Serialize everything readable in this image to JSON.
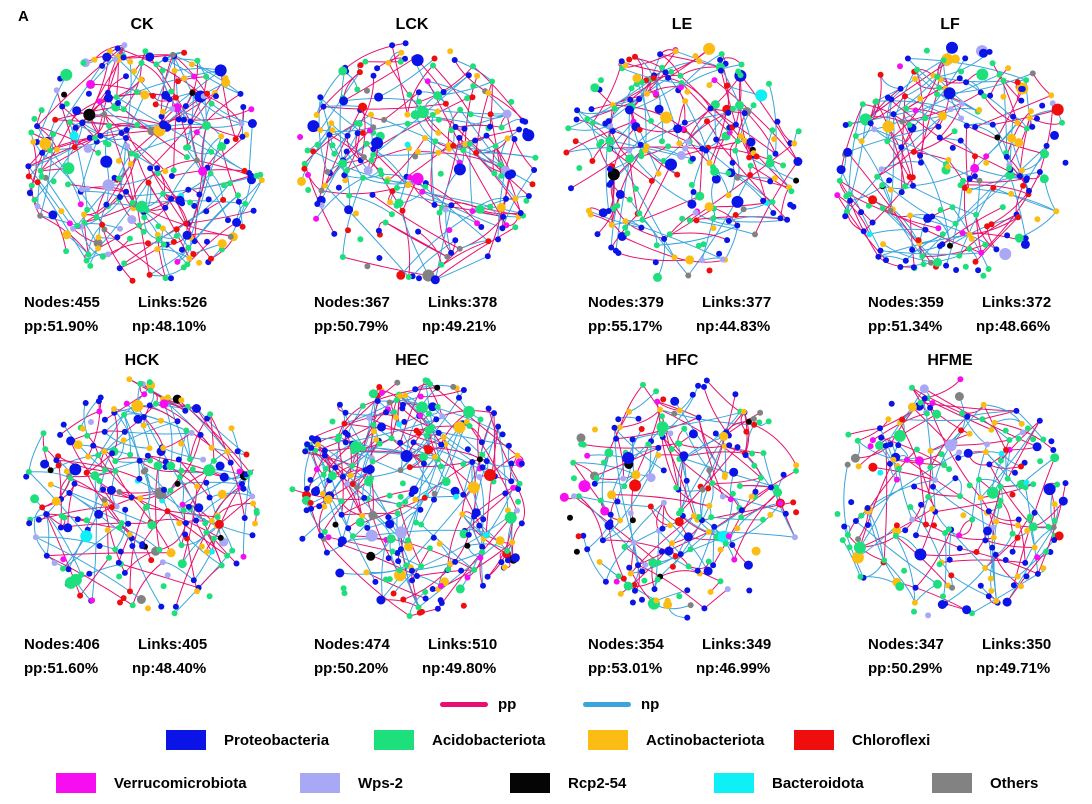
{
  "panel_label": "A",
  "networks": [
    {
      "title": "CK",
      "nodes_text": "Nodes:455",
      "links_text": "Links:526",
      "pp_text": "pp:51.90%",
      "np_text": "np:48.10%",
      "nodes": 455,
      "links": 526
    },
    {
      "title": "LCK",
      "nodes_text": "Nodes:367",
      "links_text": "Links:378",
      "pp_text": "pp:50.79%",
      "np_text": "np:49.21%",
      "nodes": 367,
      "links": 378
    },
    {
      "title": "LE",
      "nodes_text": "Nodes:379",
      "links_text": "Links:377",
      "pp_text": "pp:55.17%",
      "np_text": "np:44.83%",
      "nodes": 379,
      "links": 377
    },
    {
      "title": "LF",
      "nodes_text": "Nodes:359",
      "links_text": "Links:372",
      "pp_text": "pp:51.34%",
      "np_text": "np:48.66%",
      "nodes": 359,
      "links": 372
    },
    {
      "title": "HCK",
      "nodes_text": "Nodes:406",
      "links_text": "Links:405",
      "pp_text": "pp:51.60%",
      "np_text": "np:48.40%",
      "nodes": 406,
      "links": 405
    },
    {
      "title": "HEC",
      "nodes_text": "Nodes:474",
      "links_text": "Links:510",
      "pp_text": "pp:50.20%",
      "np_text": "np:49.80%",
      "nodes": 474,
      "links": 510
    },
    {
      "title": "HFC",
      "nodes_text": "Nodes:354",
      "links_text": "Links:349",
      "pp_text": "pp:53.01%",
      "np_text": "np:46.99%",
      "nodes": 354,
      "links": 349
    },
    {
      "title": "HFME",
      "nodes_text": "Nodes:347",
      "links_text": "Links:350",
      "pp_text": "pp:50.29%",
      "np_text": "np:49.71%",
      "nodes": 347,
      "links": 350
    }
  ],
  "edge_legend": [
    {
      "label": "pp",
      "color": "#e8106e"
    },
    {
      "label": "np",
      "color": "#3aa5dc"
    }
  ],
  "taxa_legend": [
    {
      "label": "Proteobacteria",
      "color": "#0a14e6"
    },
    {
      "label": "Acidobacteriota",
      "color": "#1de07c"
    },
    {
      "label": "Actinobacteriota",
      "color": "#fbbd13"
    },
    {
      "label": "Chloroflexi",
      "color": "#ef0d0d"
    },
    {
      "label": "Verrucomicrobiota",
      "color": "#f60ef0"
    },
    {
      "label": "Wps-2",
      "color": "#a8a8f4"
    },
    {
      "label": "Rcp2-54",
      "color": "#050505"
    },
    {
      "label": "Bacteroidota",
      "color": "#0ef0f5"
    },
    {
      "label": "Others",
      "color": "#828282"
    }
  ]
}
